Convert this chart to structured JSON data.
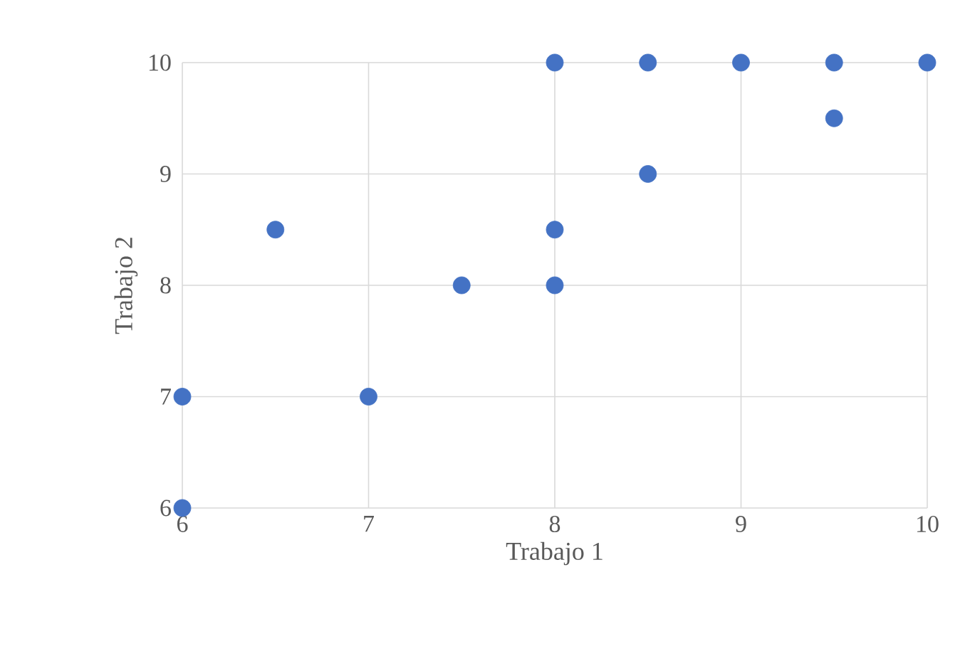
{
  "chart_data": {
    "type": "scatter",
    "xlabel": "Trabajo 1",
    "ylabel": "Trabajo 2",
    "x": [
      6,
      6,
      6.5,
      7,
      7.5,
      8,
      8,
      8,
      8.5,
      8.5,
      9,
      9.5,
      9.5,
      10
    ],
    "values": [
      6,
      7,
      8.5,
      7,
      8,
      8,
      8.5,
      10,
      9,
      10,
      10,
      9.5,
      10,
      10
    ],
    "color": "#4472c4",
    "marker": "circle",
    "xlim": [
      6,
      10
    ],
    "xticks": [
      6,
      7,
      8,
      9,
      10
    ],
    "ylim": [
      6,
      10
    ],
    "yticks": [
      6,
      7,
      8,
      9,
      10
    ],
    "grid": true
  }
}
